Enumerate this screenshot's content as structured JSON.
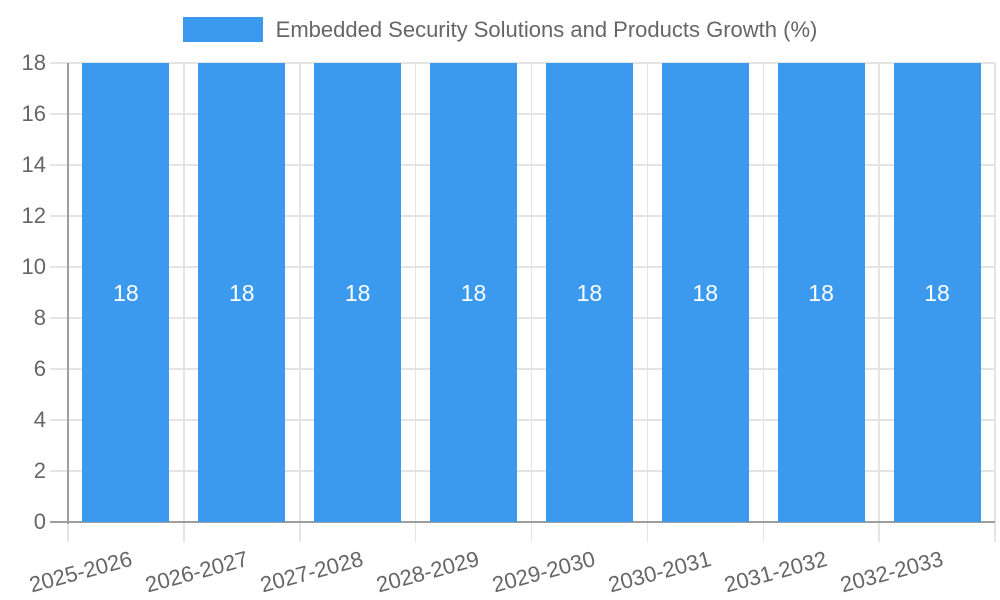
{
  "chart_data": {
    "type": "bar",
    "title": "Embedded Security Solutions and Products Growth (%)",
    "categories": [
      "2025-2026",
      "2026-2027",
      "2027-2028",
      "2028-2029",
      "2029-2030",
      "2030-2031",
      "2031-2032",
      "2032-2033"
    ],
    "values": [
      18,
      18,
      18,
      18,
      18,
      18,
      18,
      18
    ],
    "xlabel": "",
    "ylabel": "",
    "ylim": [
      0,
      18
    ],
    "yticks": [
      0,
      2,
      4,
      6,
      8,
      10,
      12,
      14,
      16,
      18
    ],
    "grid": true,
    "legend_position": "top",
    "bar_color": "#3B9AEE",
    "grid_color": "#E4E4E4",
    "axis_color": "#9E9E9E",
    "tick_label_color": "#666666",
    "value_label_color": "#FFFFFF",
    "background_color": "#FFFFFF"
  }
}
